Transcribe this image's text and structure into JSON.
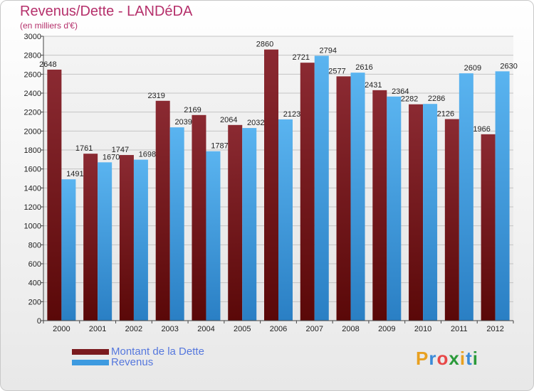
{
  "title": "Revenus/Dette - LANDéDA",
  "subtitle": "(en milliers d'€)",
  "colors": {
    "dette": "#7a1a1e",
    "revenus": "#3d9ae0",
    "title": "#b5306b"
  },
  "legend": {
    "placement": "bottom-left",
    "items": [
      "Montant de la Dette",
      "Revenus"
    ]
  },
  "logo": {
    "text": "Proxiti",
    "letters": [
      "P",
      "r",
      "o",
      "x",
      "i",
      "t",
      "i"
    ]
  },
  "chart_data": {
    "type": "bar",
    "title": "Revenus/Dette - LANDéDA",
    "subtitle": "(en milliers d'€)",
    "categories": [
      "2000",
      "2001",
      "2002",
      "2003",
      "2004",
      "2005",
      "2006",
      "2007",
      "2008",
      "2009",
      "2010",
      "2011",
      "2012"
    ],
    "series": [
      {
        "name": "Montant de la Dette",
        "values": [
          2648,
          1761,
          1747,
          2319,
          2169,
          2064,
          2860,
          2721,
          2577,
          2431,
          2282,
          2126,
          1966
        ]
      },
      {
        "name": "Revenus",
        "values": [
          1491,
          1670,
          1698,
          2039,
          1787,
          2032,
          2123,
          2794,
          2616,
          2364,
          2286,
          2609,
          2630
        ]
      }
    ],
    "ylim": [
      0,
      3000
    ],
    "yticks": [
      0,
      200,
      400,
      600,
      800,
      1000,
      1200,
      1400,
      1600,
      1800,
      2000,
      2200,
      2400,
      2600,
      2800,
      3000
    ],
    "grid": true,
    "xlabel": "",
    "ylabel": ""
  }
}
